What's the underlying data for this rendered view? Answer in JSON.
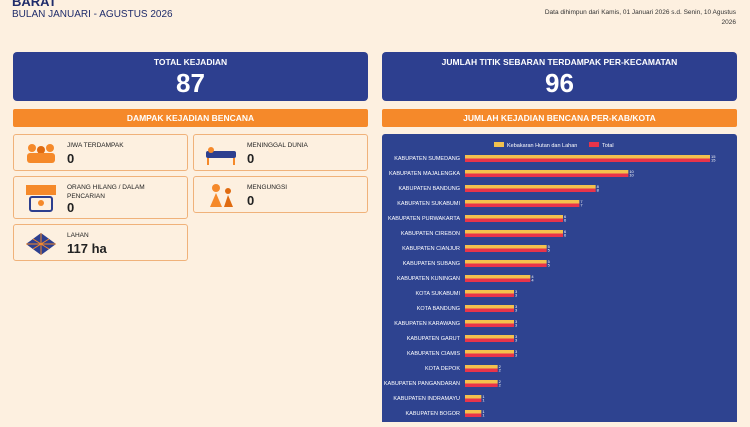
{
  "header": {
    "title": "BARAT",
    "subtitle": "BULAN JANUARI - AGUSTUS 2026",
    "note": "Data dihimpun dari Kamis, 01 Januari 2026 s.d. Senin, 10 Agustus 2026"
  },
  "cards": [
    {
      "label": "TOTAL KEJADIAN",
      "value": "87"
    },
    {
      "label": "JUMLAH TITIK SEBARAN TERDAMPAK PER-KECAMATAN",
      "value": "96"
    }
  ],
  "sections": [
    "DAMPAK KEJADIAN BENCANA",
    "JUMLAH KEJADIAN BENCANA PER-KAB/KOTA"
  ],
  "impacts": [
    {
      "label": "JIWA TERDAMPAK",
      "value": "0"
    },
    {
      "label": "MENINGGAL DUNIA",
      "value": "0"
    },
    {
      "label": "ORANG HILANG / DALAM PENCARIAN",
      "value": "0"
    },
    {
      "label": "MENGUNGSI",
      "value": "0"
    },
    {
      "label": "LAHAN",
      "value": "117 ha"
    }
  ],
  "chart_data": {
    "type": "hbar",
    "categories": [
      "KABUPATEN SUMEDANG",
      "KABUPATEN MAJALENGKA",
      "KABUPATEN BANDUNG",
      "KABUPATEN SUKABUMI",
      "KABUPATEN PURWAKARTA",
      "KABUPATEN CIREBON",
      "KABUPATEN CIANJUR",
      "KABUPATEN SUBANG",
      "KABUPATEN KUNINGAN",
      "KOTA SUKABUMI",
      "KOTA BANDUNG",
      "KABUPATEN KARAWANG",
      "KABUPATEN GARUT",
      "KABUPATEN CIAMIS",
      "KOTA DEPOK",
      "KABUPATEN PANGANDARAN",
      "KABUPATEN INDRAMAYU",
      "KABUPATEN BOGOR"
    ],
    "series": [
      {
        "name": "Kebakaran Hutan dan Lahan",
        "color": "#f2c14e",
        "values": [
          15,
          10,
          8,
          7,
          6,
          6,
          5,
          5,
          4,
          3,
          3,
          3,
          3,
          3,
          2,
          2,
          1,
          1
        ]
      },
      {
        "name": "Total",
        "color": "#e8344a",
        "values": [
          15,
          10,
          8,
          7,
          6,
          6,
          5,
          5,
          4,
          3,
          3,
          3,
          3,
          3,
          2,
          2,
          1,
          1
        ]
      }
    ]
  }
}
